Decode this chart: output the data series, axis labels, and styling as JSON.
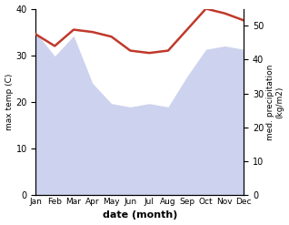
{
  "months": [
    "Jan",
    "Feb",
    "Mar",
    "Apr",
    "May",
    "Jun",
    "Jul",
    "Aug",
    "Sep",
    "Oct",
    "Nov",
    "Dec"
  ],
  "max_temp": [
    34.5,
    32.0,
    35.5,
    35.0,
    34.0,
    31.0,
    30.5,
    31.0,
    35.5,
    40.0,
    39.0,
    37.5
  ],
  "precipitation": [
    48,
    41,
    47,
    33,
    27,
    26,
    27,
    26,
    35,
    43,
    44,
    43
  ],
  "temp_color": "#c0392b",
  "precip_fill_color": "#b8c0e8",
  "temp_ylim": [
    0,
    40
  ],
  "precip_ylim": [
    0,
    55
  ],
  "temp_yticks": [
    0,
    10,
    20,
    30,
    40
  ],
  "precip_yticks": [
    0,
    10,
    20,
    30,
    40,
    50
  ],
  "ylabel_left": "max temp (C)",
  "ylabel_right": "med. precipitation\n(kg/m2)",
  "xlabel": "date (month)",
  "bg_color": "#ffffff"
}
